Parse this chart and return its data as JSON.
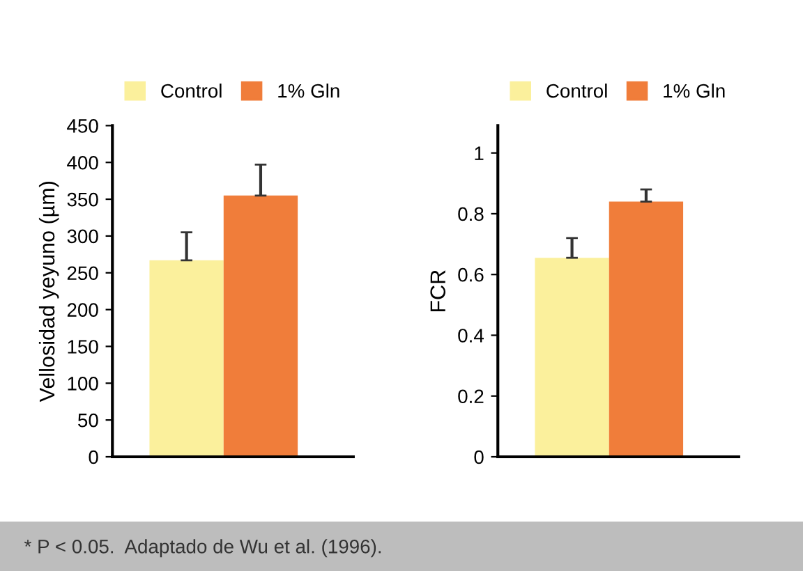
{
  "chart_data": [
    {
      "type": "bar",
      "ylabel": "Vellosidad yeyuno (µm)",
      "categories": [
        null
      ],
      "legend": "top",
      "ylim": [
        0,
        450
      ],
      "yticks": [
        0,
        50,
        100,
        150,
        200,
        250,
        300,
        350,
        400,
        450
      ],
      "series": [
        {
          "name": "Control",
          "color": "#fbf09c",
          "values": [
            267
          ],
          "errors": [
            [
              267,
              305
            ]
          ]
        },
        {
          "name": "1% Gln",
          "color": "#f07d3a",
          "values": [
            355
          ],
          "errors": [
            [
              355,
              397
            ]
          ]
        }
      ]
    },
    {
      "type": "bar",
      "ylabel": "FCR",
      "categories": [
        null
      ],
      "legend": "top",
      "ylim": [
        0,
        1.09
      ],
      "yticks": [
        0,
        {
          "value": 0.2,
          "label": "0.2"
        },
        {
          "value": 0.4,
          "label": "0.4"
        },
        {
          "value": 0.6,
          "label": "0.6"
        },
        {
          "value": 0.8,
          "label": "0.8"
        },
        1
      ],
      "annotations": [
        "* P < 0.05.  Adaptado de Wu et al. (1996)."
      ],
      "series": [
        {
          "name": "Control",
          "color": "#fbf09c",
          "values": [
            0.655
          ],
          "errors": [
            [
              0.655,
              0.72
            ]
          ]
        },
        {
          "name": "1% Gln",
          "color": "#f07d3a",
          "values": [
            0.84
          ],
          "errors": [
            [
              0.84,
              0.88
            ]
          ]
        }
      ]
    }
  ]
}
